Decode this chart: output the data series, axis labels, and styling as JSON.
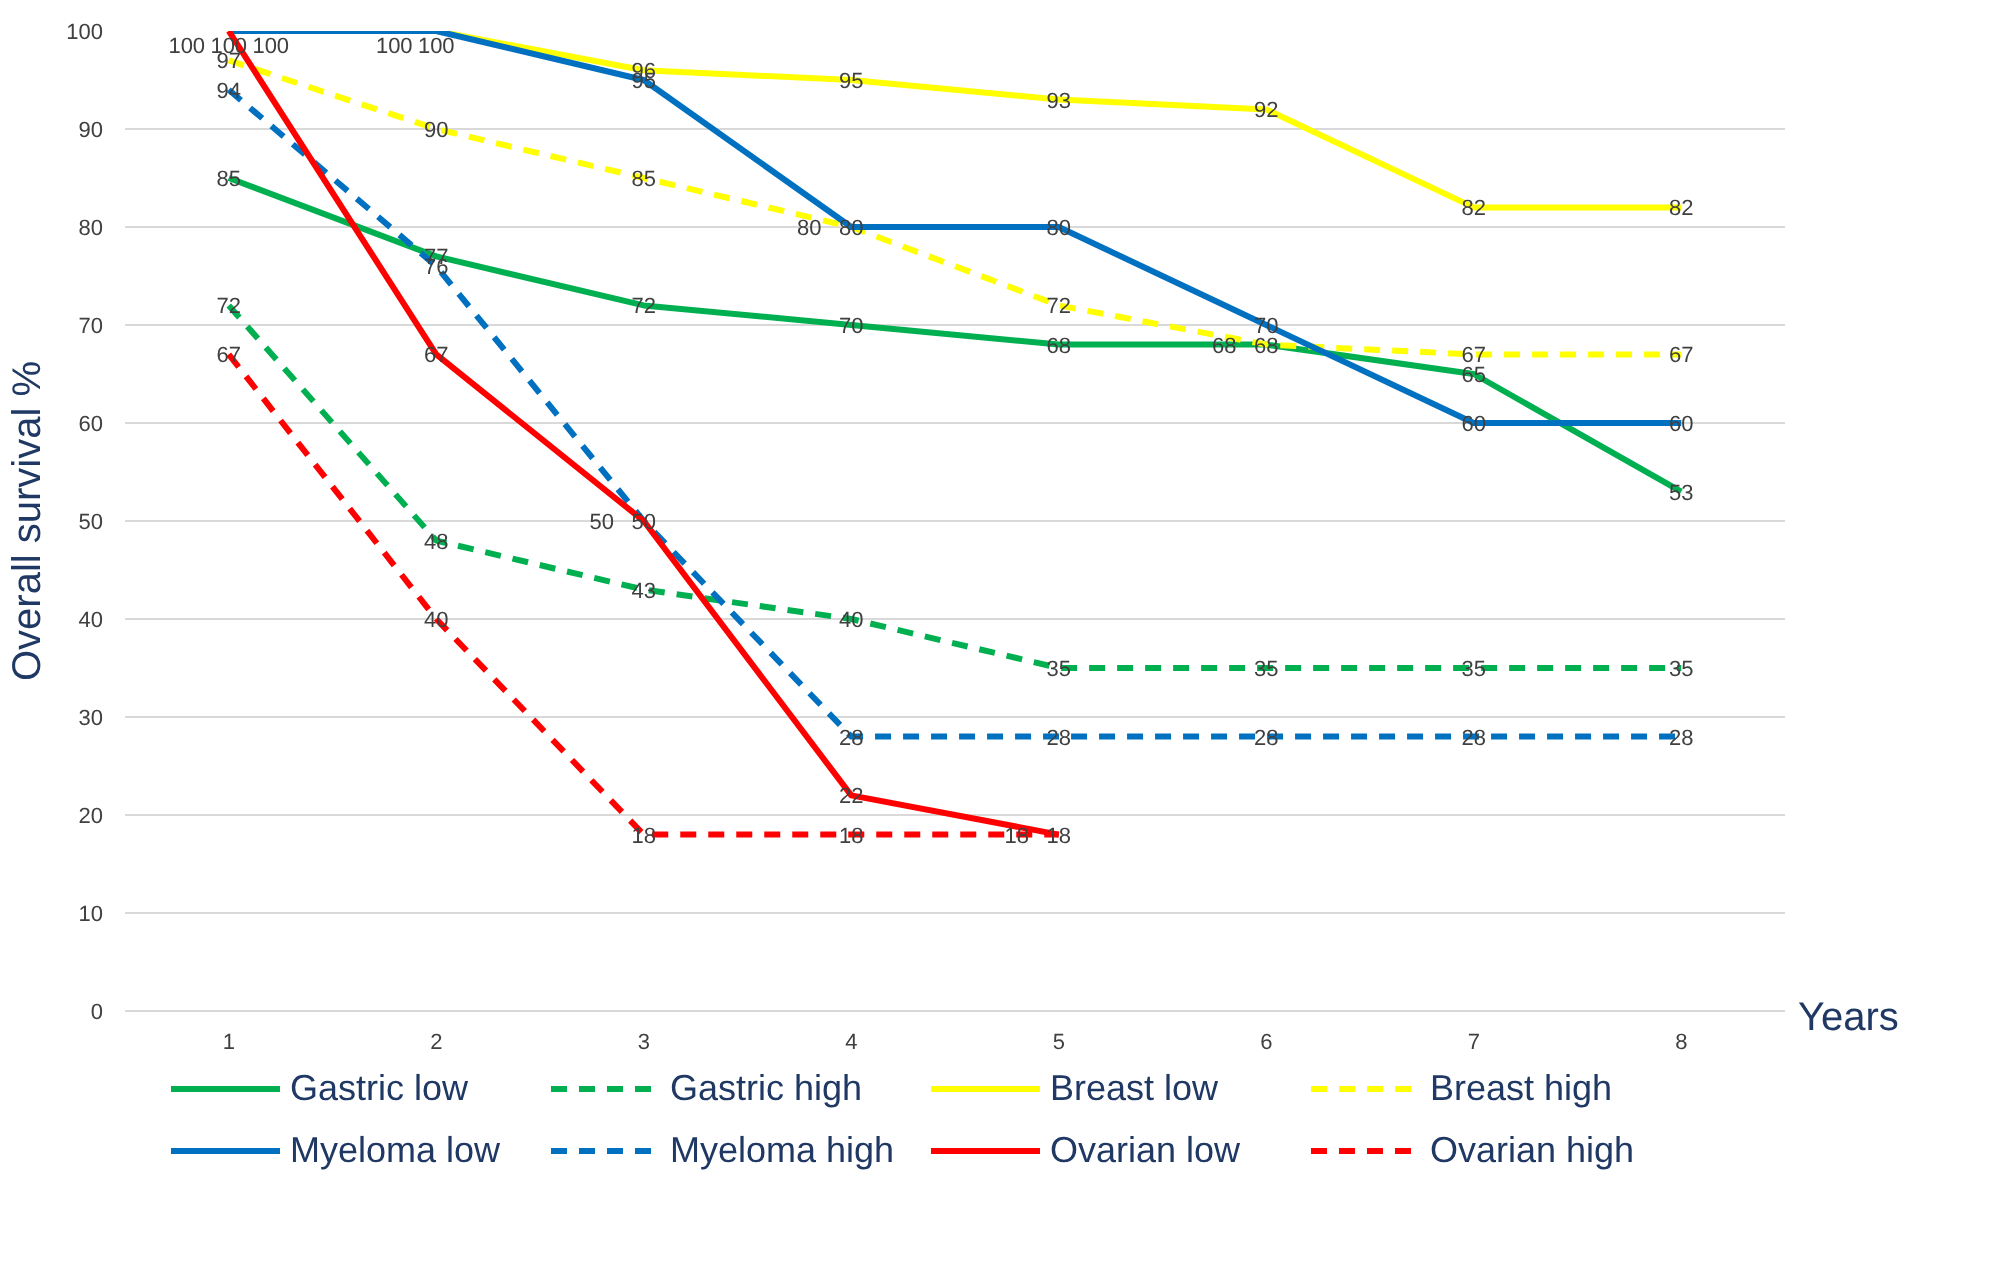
{
  "chart_data": {
    "type": "line",
    "xlabel": "Years",
    "ylabel": "Overall survival %",
    "categories": [
      "1",
      "2",
      "3",
      "4",
      "5",
      "6",
      "7",
      "8"
    ],
    "series": [
      {
        "name": "Gastric low",
        "color": "#00b050",
        "line_style": "solid",
        "values": [
          85,
          77,
          72,
          70,
          68,
          68,
          65,
          53
        ]
      },
      {
        "name": "Gastric high",
        "color": "#00b050",
        "line_style": "dashed",
        "values": [
          72,
          48,
          43,
          40,
          35,
          35,
          35,
          35
        ]
      },
      {
        "name": "Breast low",
        "color": "#ffff00",
        "line_style": "solid",
        "values": [
          100,
          100,
          96,
          95,
          93,
          92,
          82,
          82
        ]
      },
      {
        "name": "Breast high",
        "color": "#ffff00",
        "line_style": "dashed",
        "values": [
          97,
          90,
          85,
          80,
          72,
          68,
          67,
          67
        ]
      },
      {
        "name": "Myeloma low",
        "color": "#0070c0",
        "line_style": "solid",
        "values": [
          100,
          100,
          95,
          80,
          80,
          70,
          60,
          60
        ]
      },
      {
        "name": "Myeloma high",
        "color": "#0070c0",
        "line_style": "dashed",
        "values": [
          94,
          76,
          50,
          28,
          28,
          28,
          28,
          28
        ]
      },
      {
        "name": "Ovarian low",
        "color": "#ff0000",
        "line_style": "solid",
        "values": [
          100,
          67,
          50,
          22,
          18,
          null,
          null,
          null
        ]
      },
      {
        "name": "Ovarian high",
        "color": "#ff0000",
        "line_style": "dashed",
        "values": [
          67,
          40,
          18,
          18,
          18,
          null,
          null,
          null
        ]
      }
    ],
    "ylim": [
      0,
      100
    ],
    "yticks": [
      0,
      10,
      20,
      30,
      40,
      50,
      60,
      70,
      80,
      90,
      100
    ],
    "grid": "y",
    "legend": "bottom",
    "data_labels": true,
    "marker": "none"
  }
}
